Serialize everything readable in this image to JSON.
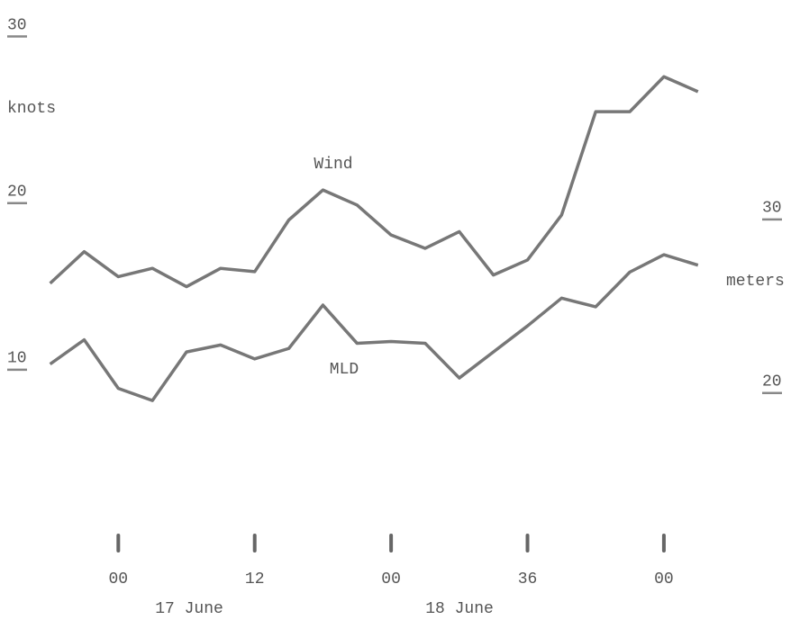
{
  "chart_data": {
    "type": "line",
    "ylabel": "knots",
    "y2label": "meters",
    "date_labels": [
      "17 June",
      "18 June"
    ],
    "x": [
      -6,
      -3,
      0,
      3,
      6,
      9,
      12,
      15,
      18,
      21,
      24,
      27,
      30,
      33,
      36,
      39,
      42,
      45,
      48,
      51
    ],
    "xlim": [
      -7,
      53
    ],
    "xticks": [
      {
        "value": 0,
        "label": "00"
      },
      12,
      {
        "value": 24,
        "label": "00"
      },
      36,
      {
        "value": 48,
        "label": "00"
      }
    ],
    "ylim": [
      6,
      31
    ],
    "yticks": [
      10,
      20,
      30
    ],
    "y2lim": [
      17.5,
      41.5
    ],
    "y2ticks": [
      20,
      30
    ],
    "grid": false,
    "series": [
      {
        "name": "Wind",
        "color": "#777777",
        "values": [
          14.7,
          16.6,
          15.1,
          15.6,
          14.5,
          15.6,
          15.4,
          18.5,
          20.3,
          19.4,
          17.6,
          16.8,
          17.8,
          15.2,
          16.1,
          18.8,
          25.0,
          25.0,
          27.1,
          26.2
        ]
      },
      {
        "name": "MLD",
        "color": "#777777",
        "axis": "y2",
        "values": [
          21.2,
          22.6,
          19.8,
          19.1,
          21.9,
          22.3,
          21.5,
          22.1,
          24.6,
          22.4,
          22.5,
          22.4,
          20.4,
          21.9,
          23.4,
          25.0,
          24.5,
          26.5,
          27.5,
          26.9
        ]
      }
    ]
  }
}
